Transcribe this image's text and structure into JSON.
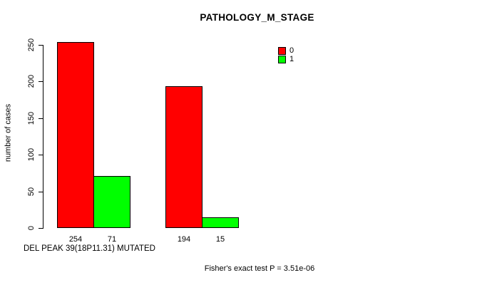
{
  "chart_data": {
    "type": "bar",
    "title": "PATHOLOGY_M_STAGE",
    "ylabel": "number of cases",
    "xlabel": "DEL PEAK 39(18P11.31) MUTATED",
    "footer": "Fisher's exact test P = 3.51e-06",
    "yticks": [
      0,
      50,
      100,
      150,
      200,
      250
    ],
    "ylim": [
      0,
      250
    ],
    "grid": false,
    "legend_position": "top-right",
    "legend_entries": [
      "0",
      "1"
    ],
    "series": [
      {
        "name": "0",
        "color": "#FF0000",
        "values": [
          254,
          194
        ]
      },
      {
        "name": "1",
        "color": "#00FF00",
        "values": [
          71,
          15
        ]
      }
    ],
    "groups": 2,
    "bar_value_labels": [
      [
        "254",
        "71"
      ],
      [
        "194",
        "15"
      ]
    ],
    "colors": {
      "background": "#FFFFFF",
      "axis": "#000000",
      "text": "#000000",
      "series_0": "#FF0000",
      "series_1": "#00FF00"
    }
  }
}
